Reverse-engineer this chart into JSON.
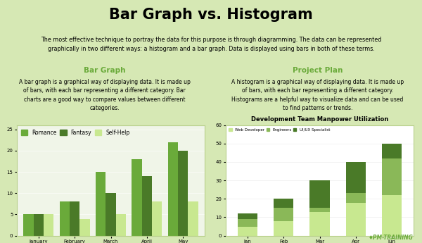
{
  "title": "Bar Graph vs. Histogram",
  "title_bg": "#6aaa3a",
  "subtitle": "The most effective technique to portray the data for this purpose is through diagramming. The data can be represented\ngraphically in two different ways: a histogram and a bar graph. Data is displayed using bars in both of these terms.",
  "subtitle_bg": "#c8dba8",
  "left_section_title": "Bar Graph",
  "left_section_title_color": "#6aaa3a",
  "left_section_text": "A bar graph is a graphical way of displaying data. It is made up\nof bars, with each bar representing a different category. Bar\ncharts are a good way to compare values between different\ncategories.",
  "right_section_title": "Project Plan",
  "right_section_title_color": "#6aaa3a",
  "right_section_text": "A histogram is a graphical way of displaying data. It is made up\nof bars, with each bar representing a different category.\nHistograms are a helpful way to visualize data and can be used\nto find patterns or trends.",
  "section_bg": "#ffffff",
  "bottom_bg": "#d6e8b4",
  "bar_chart_bg": "#f0f5e8",
  "bar_chart_border": "#b8d08c",
  "bar_categories": [
    "January",
    "February",
    "March",
    "April",
    "May"
  ],
  "bar_romance": [
    5,
    8,
    15,
    18,
    22
  ],
  "bar_fantasy": [
    5,
    8,
    10,
    14,
    20
  ],
  "bar_selfhelp": [
    5,
    4,
    5,
    8,
    8
  ],
  "bar_romance_color": "#6aaa3a",
  "bar_fantasy_color": "#4a7a28",
  "bar_selfhelp_color": "#c8e890",
  "hist_title": "Development Team Manpower Utilization",
  "hist_bg": "#ffffff",
  "hist_border": "#b8d08c",
  "hist_categories": [
    "Jan",
    "Feb",
    "Mar",
    "Apr",
    "Jun"
  ],
  "hist_web_dev": [
    5,
    8,
    13,
    18,
    22
  ],
  "hist_engineers": [
    4,
    7,
    2,
    5,
    20
  ],
  "hist_uiux": [
    3,
    5,
    15,
    17,
    8
  ],
  "hist_web_color": "#c8e890",
  "hist_eng_color": "#8ab858",
  "hist_uiux_color": "#4a7a28",
  "hist_legend": [
    "Web Developer",
    "Engineers",
    "UI/UX Specialist"
  ],
  "watermark": "♦PM-TRAINING",
  "watermark_color": "#6aaa3a"
}
